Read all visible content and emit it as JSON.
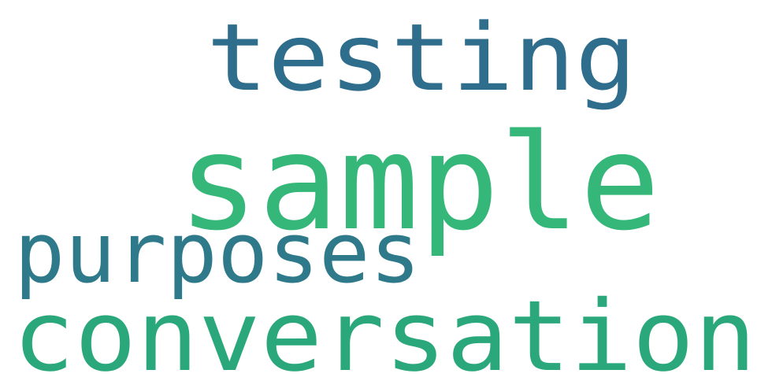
{
  "words": [
    {
      "text": "testing",
      "color": "#2f6d8c"
    },
    {
      "text": "sample",
      "color": "#35b779"
    },
    {
      "text": "purposes",
      "color": "#2e7a8a"
    },
    {
      "text": "conversation",
      "color": "#2aa87c"
    }
  ]
}
